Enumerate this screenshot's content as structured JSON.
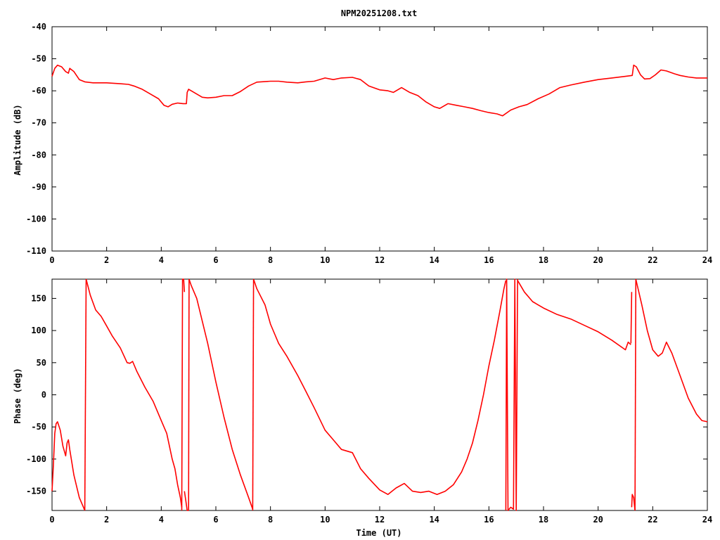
{
  "chart_data": [
    {
      "type": "line",
      "title": "NPM20251208.txt",
      "xlabel": "",
      "ylabel": "Amplitude (dB)",
      "xlim": [
        0,
        24
      ],
      "ylim": [
        -110,
        -40
      ],
      "x_ticks": [
        0,
        2,
        4,
        6,
        8,
        10,
        12,
        14,
        16,
        18,
        20,
        22,
        24
      ],
      "y_ticks": [
        -40,
        -50,
        -60,
        -70,
        -80,
        -90,
        -100,
        -110
      ],
      "x_tick_labels": [
        "0",
        "2",
        "4",
        "6",
        "8",
        "10",
        "12",
        "14",
        "16",
        "18",
        "20",
        "22",
        "24"
      ],
      "y_tick_labels": [
        "-40",
        "-50",
        "-60",
        "-70",
        "-80",
        "-90",
        "-100",
        "-110"
      ],
      "grid": false,
      "color": "#ff0000",
      "series": [
        {
          "x": [
            0,
            0.1,
            0.2,
            0.35,
            0.5,
            0.6,
            0.65,
            0.8,
            1.0,
            1.2,
            1.5,
            2.0,
            2.5,
            2.8,
            3.0,
            3.3,
            3.6,
            3.9,
            4.1,
            4.25,
            4.4,
            4.6,
            4.8,
            4.92,
            4.95,
            5.0,
            5.2,
            5.5,
            5.7,
            6.0,
            6.3,
            6.6,
            6.9,
            7.2,
            7.5,
            8.0,
            8.3,
            8.6,
            9.0,
            9.3,
            9.6,
            10.0,
            10.3,
            10.6,
            11.0,
            11.3,
            11.6,
            12.0,
            12.3,
            12.5,
            12.8,
            13.1,
            13.4,
            13.7,
            14.0,
            14.2,
            14.5,
            14.8,
            15.1,
            15.4,
            15.7,
            16.0,
            16.3,
            16.5,
            16.8,
            17.1,
            17.4,
            17.8,
            18.2,
            18.6,
            19.0,
            19.5,
            20.0,
            20.5,
            21.0,
            21.25,
            21.3,
            21.4,
            21.55,
            21.7,
            21.9,
            22.1,
            22.3,
            22.5,
            22.8,
            23.0,
            23.3,
            23.6,
            23.9,
            24.0
          ],
          "y": [
            -55.5,
            -53,
            -52,
            -52.5,
            -54,
            -54.5,
            -53,
            -54,
            -56.5,
            -57.2,
            -57.5,
            -57.5,
            -57.8,
            -58,
            -58.5,
            -59.5,
            -61,
            -62.5,
            -64.5,
            -65,
            -64.2,
            -63.8,
            -64,
            -64,
            -60.5,
            -59.5,
            -60.5,
            -62,
            -62.2,
            -62,
            -61.5,
            -61.5,
            -60.2,
            -58.5,
            -57.3,
            -57,
            -57,
            -57.3,
            -57.5,
            -57.2,
            -57,
            -56,
            -56.5,
            -56,
            -55.8,
            -56.5,
            -58.5,
            -59.7,
            -60,
            -60.5,
            -59,
            -60.5,
            -61.5,
            -63.5,
            -65,
            -65.5,
            -64,
            -64.5,
            -65,
            -65.5,
            -66.2,
            -66.8,
            -67.2,
            -67.8,
            -66,
            -65,
            -64.3,
            -62.5,
            -61,
            -59,
            -58.2,
            -57.3,
            -56.5,
            -56,
            -55.5,
            -55.2,
            -52,
            -52.5,
            -55,
            -56.3,
            -56.2,
            -55,
            -53.5,
            -53.8,
            -54.7,
            -55.2,
            -55.7,
            -56,
            -56,
            -56
          ]
        }
      ]
    },
    {
      "type": "line",
      "title": "",
      "xlabel": "Time (UT)",
      "ylabel": "Phase (deg)",
      "xlim": [
        0,
        24
      ],
      "ylim": [
        -180,
        180
      ],
      "x_ticks": [
        0,
        2,
        4,
        6,
        8,
        10,
        12,
        14,
        16,
        18,
        20,
        22,
        24
      ],
      "y_ticks": [
        150,
        100,
        50,
        0,
        -50,
        -100,
        -150
      ],
      "x_tick_labels": [
        "0",
        "2",
        "4",
        "6",
        "8",
        "10",
        "12",
        "14",
        "16",
        "18",
        "20",
        "22",
        "24"
      ],
      "y_tick_labels": [
        "150",
        "100",
        "50",
        "0",
        "-50",
        "-100",
        "-150"
      ],
      "grid": false,
      "color": "#ff0000",
      "series": [
        {
          "x": [
            0,
            0.05,
            0.1,
            0.15,
            0.2,
            0.3,
            0.4,
            0.5,
            0.55,
            0.6,
            0.65,
            0.8,
            1.0,
            1.15,
            1.2
          ],
          "y": [
            -150,
            -110,
            -60,
            -45,
            -42,
            -55,
            -80,
            -95,
            -75,
            -70,
            -85,
            -125,
            -160,
            -175,
            -180
          ]
        },
        {
          "x": [
            1.2,
            1.25
          ],
          "y": [
            -180,
            180
          ]
        },
        {
          "x": [
            1.25,
            1.4,
            1.6,
            1.8,
            2.0,
            2.2,
            2.5,
            2.75,
            2.85,
            2.95,
            3.1,
            3.4,
            3.7,
            4.0,
            4.2,
            4.3,
            4.4,
            4.5,
            4.6,
            4.7,
            4.75
          ],
          "y": [
            180,
            155,
            132,
            122,
            107,
            92,
            73,
            50,
            49,
            52,
            37,
            12,
            -10,
            -40,
            -60,
            -80,
            -100,
            -115,
            -140,
            -160,
            -175
          ]
        },
        {
          "x": [
            4.75,
            4.78,
            4.82,
            4.85
          ],
          "y": [
            -180,
            180,
            180,
            160
          ]
        },
        {
          "x": [
            4.85,
            4.9,
            4.95,
            5.0
          ],
          "y": [
            -150,
            -165,
            -180,
            -180
          ]
        },
        {
          "x": [
            5.0,
            5.02
          ],
          "y": [
            -180,
            180
          ]
        },
        {
          "x": [
            5.02,
            5.1,
            5.3,
            5.5,
            5.7,
            6.0,
            6.3,
            6.6,
            6.9,
            7.2,
            7.35
          ],
          "y": [
            180,
            170,
            150,
            115,
            80,
            20,
            -35,
            -85,
            -125,
            -160,
            -178
          ]
        },
        {
          "x": [
            7.35,
            7.38
          ],
          "y": [
            -180,
            180
          ]
        },
        {
          "x": [
            7.38,
            7.5,
            7.8,
            8.0,
            8.3,
            8.6,
            9.0,
            9.3,
            9.6,
            10.0,
            10.3,
            10.6,
            11.0,
            11.3,
            11.6,
            12.0,
            12.3,
            12.6,
            12.9,
            13.2,
            13.5,
            13.8,
            14.1,
            14.4,
            14.7,
            15.0,
            15.2,
            15.4,
            15.6,
            15.8,
            16.0,
            16.2,
            16.4,
            16.55,
            16.62
          ],
          "y": [
            180,
            165,
            140,
            110,
            80,
            60,
            30,
            5,
            -20,
            -55,
            -70,
            -85,
            -90,
            -115,
            -130,
            -148,
            -155,
            -145,
            -138,
            -150,
            -152,
            -150,
            -155,
            -150,
            -140,
            -120,
            -100,
            -75,
            -40,
            0,
            45,
            85,
            130,
            165,
            178
          ]
        },
        {
          "x": [
            16.62,
            16.65,
            16.7,
            16.8,
            16.9,
            16.95,
            17.0,
            17.05
          ],
          "y": [
            -180,
            180,
            -180,
            -175,
            -178,
            180,
            -180,
            180
          ]
        },
        {
          "x": [
            17.05,
            17.3,
            17.6,
            18.0,
            18.5,
            19.0,
            19.5,
            20.0,
            20.5,
            21.0,
            21.1,
            21.2
          ],
          "y": [
            178,
            160,
            145,
            135,
            125,
            118,
            108,
            98,
            85,
            70,
            82,
            78
          ]
        },
        {
          "x": [
            21.2,
            21.23
          ],
          "y": [
            80,
            160
          ]
        },
        {
          "x": [
            21.23,
            21.25,
            21.3,
            21.35
          ],
          "y": [
            -175,
            -155,
            -160,
            -180
          ]
        },
        {
          "x": [
            21.35,
            21.38
          ],
          "y": [
            -180,
            180
          ]
        },
        {
          "x": [
            21.38,
            21.6,
            21.8,
            22.0,
            22.2,
            22.35,
            22.5,
            22.7,
            23.0,
            23.3,
            23.6,
            23.8,
            24.0
          ],
          "y": [
            180,
            140,
            100,
            70,
            60,
            65,
            82,
            65,
            30,
            -5,
            -30,
            -40,
            -42
          ]
        }
      ]
    }
  ]
}
